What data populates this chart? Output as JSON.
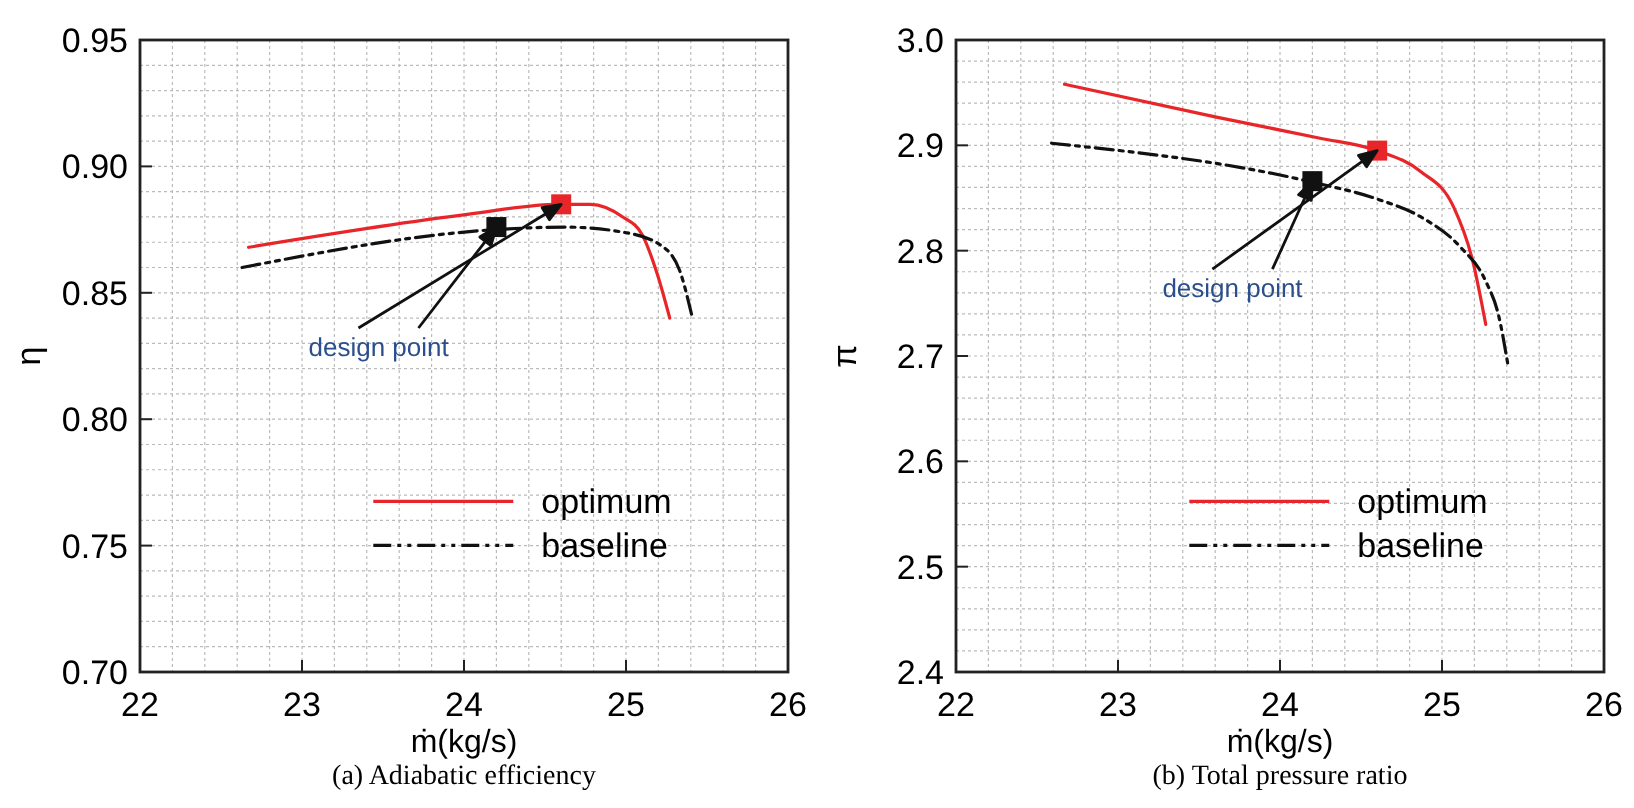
{
  "chart_data": [
    {
      "type": "line",
      "title": "(a) Adiabatic efficiency",
      "xlabel": "ṁ(kg/s)",
      "ylabel": "η",
      "xlim": [
        22,
        26
      ],
      "xticks": [
        22,
        23,
        24,
        25,
        26
      ],
      "ylim": [
        0.7,
        0.95
      ],
      "yticks": [
        {
          "value": 0.7,
          "label": "0.70"
        },
        {
          "value": 0.75,
          "label": "0.75"
        },
        {
          "value": 0.8,
          "label": "0.80"
        },
        {
          "value": 0.85,
          "label": "0.85"
        },
        {
          "value": 0.9,
          "label": "0.90"
        },
        {
          "value": 0.95,
          "label": "0.95"
        }
      ],
      "grid": true,
      "legend": "bottom right",
      "annotations": [
        "design point"
      ],
      "series": [
        {
          "name": "optimum",
          "color": "#e8262a",
          "line_style": "solid",
          "x": [
            22.67,
            24.02,
            24.58,
            24.78,
            24.98,
            25.1,
            25.19,
            25.27
          ],
          "values": [
            0.868,
            0.881,
            0.885,
            0.885,
            0.88,
            0.873,
            0.858,
            0.84
          ]
        },
        {
          "name": "baseline",
          "color": "#111111",
          "line_style": "dashed",
          "x": [
            22.63,
            24.2,
            24.62,
            24.98,
            25.21,
            25.33,
            25.41
          ],
          "values": [
            0.86,
            0.875,
            0.876,
            0.874,
            0.869,
            0.859,
            0.84
          ]
        },
        {
          "type": "scatter",
          "marker": "square",
          "color": "#e8262a",
          "x": [
            24.6
          ],
          "values": [
            0.885
          ]
        },
        {
          "type": "scatter",
          "marker": "square",
          "color": "#111111",
          "x": [
            24.2
          ],
          "values": [
            0.876
          ]
        }
      ]
    },
    {
      "type": "line",
      "title": "(b) Total pressure ratio",
      "xlabel": "ṁ(kg/s)",
      "ylabel": "π",
      "xlim": [
        22,
        26
      ],
      "xticks": [
        22,
        23,
        24,
        25,
        26
      ],
      "ylim": [
        2.4,
        3.0
      ],
      "yticks": [
        2.4,
        2.5,
        2.6,
        2.7,
        2.8,
        2.9,
        {
          "value": 3.0,
          "label": "3.0"
        }
      ],
      "grid": true,
      "legend": "bottom right",
      "annotations": [
        {
          "text": "design point",
          "x": 24.2,
          "y": 2.866
        }
      ],
      "series": [
        {
          "name": "optimum",
          "color": "#e8262a",
          "line_style": "solid",
          "x": [
            22.67,
            23.6,
            24.24,
            24.6,
            24.87,
            25.07,
            25.19,
            25.27
          ],
          "values": [
            2.958,
            2.927,
            2.907,
            2.895,
            2.875,
            2.842,
            2.79,
            2.73
          ]
        },
        {
          "name": "baseline",
          "color": "#111111",
          "line_style": "dashed",
          "x": [
            22.59,
            24.2,
            24.6,
            24.87,
            25.11,
            25.27,
            25.35,
            25.41
          ],
          "values": [
            2.902,
            2.865,
            2.849,
            2.832,
            2.804,
            2.771,
            2.738,
            2.689
          ]
        },
        {
          "type": "scatter",
          "marker": "square",
          "color": "#e8262a",
          "x": [
            24.6
          ],
          "values": [
            2.895
          ]
        },
        {
          "type": "scatter",
          "marker": "square",
          "color": "#111111",
          "x": [
            24.2
          ],
          "values": [
            2.866
          ]
        }
      ]
    }
  ]
}
